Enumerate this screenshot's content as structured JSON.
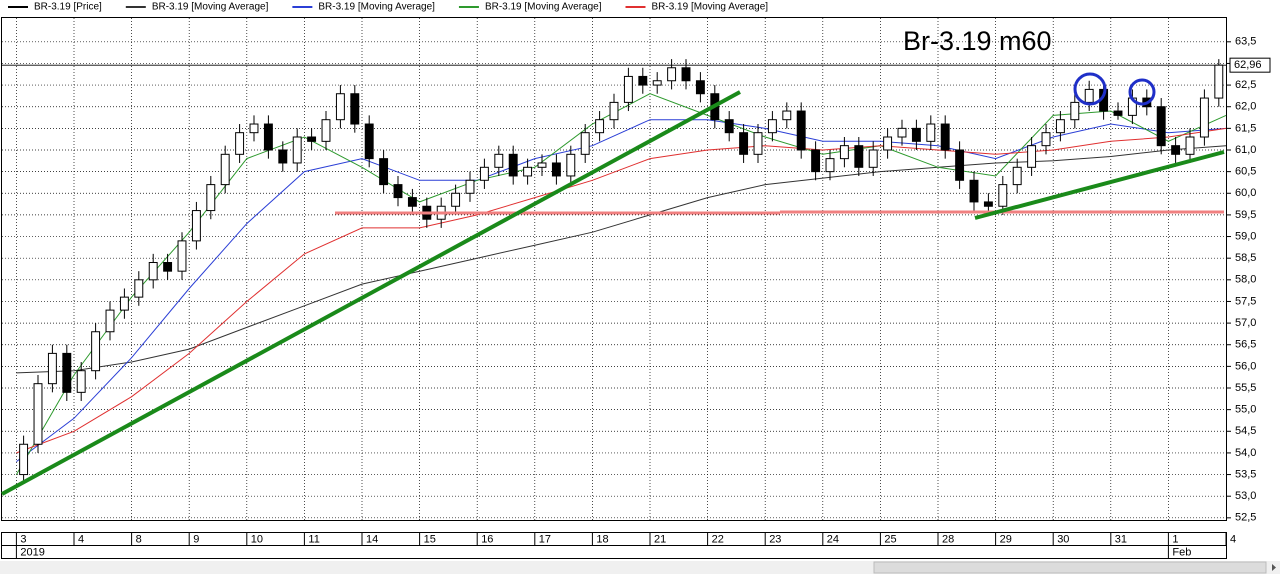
{
  "chart_data": {
    "type": "candlestick",
    "title": "Br-3.19 m60",
    "xlim": [
      -1,
      84
    ],
    "ylim": [
      52.45,
      64.05
    ],
    "xticks": [
      {
        "value": 0,
        "label": "3"
      },
      {
        "value": 4,
        "label": "4"
      },
      {
        "value": 8,
        "label": "8"
      },
      {
        "value": 12,
        "label": "9"
      },
      {
        "value": 16,
        "label": "10"
      },
      {
        "value": 20,
        "label": "11"
      },
      {
        "value": 24,
        "label": "14"
      },
      {
        "value": 28,
        "label": "15"
      },
      {
        "value": 32,
        "label": "16"
      },
      {
        "value": 36,
        "label": "17"
      },
      {
        "value": 40,
        "label": "18"
      },
      {
        "value": 44,
        "label": "21"
      },
      {
        "value": 48,
        "label": "22"
      },
      {
        "value": 52,
        "label": "23"
      },
      {
        "value": 56,
        "label": "24"
      },
      {
        "value": 60,
        "label": "25"
      },
      {
        "value": 64,
        "label": "28"
      },
      {
        "value": 68,
        "label": "29"
      },
      {
        "value": 72,
        "label": "30"
      },
      {
        "value": 76,
        "label": "31"
      },
      {
        "value": 80,
        "label": "1"
      },
      {
        "value": 84,
        "label": "4"
      }
    ],
    "x_sublabels": [
      {
        "value": 0,
        "label": "2019"
      },
      {
        "value": 80,
        "label": "Feb"
      }
    ],
    "yticks": [
      {
        "value": 52.5,
        "label": "52,5"
      },
      {
        "value": 53,
        "label": "53,0"
      },
      {
        "value": 53.5,
        "label": "53,5"
      },
      {
        "value": 54,
        "label": "54,0"
      },
      {
        "value": 54.5,
        "label": "54,5"
      },
      {
        "value": 55,
        "label": "55,0"
      },
      {
        "value": 55.5,
        "label": "55,5"
      },
      {
        "value": 56,
        "label": "56,0"
      },
      {
        "value": 56.5,
        "label": "56,5"
      },
      {
        "value": 57,
        "label": "57,0"
      },
      {
        "value": 57.5,
        "label": "57,5"
      },
      {
        "value": 58,
        "label": "58,0"
      },
      {
        "value": 58.5,
        "label": "58,5"
      },
      {
        "value": 59,
        "label": "59,0"
      },
      {
        "value": 59.5,
        "label": "59,5"
      },
      {
        "value": 60,
        "label": "60,0"
      },
      {
        "value": 60.5,
        "label": "60,5"
      },
      {
        "value": 61,
        "label": "61,0"
      },
      {
        "value": 61.5,
        "label": "61,5"
      },
      {
        "value": 62,
        "label": "62,0"
      },
      {
        "value": 62.5,
        "label": "62,5"
      },
      {
        "value": 63,
        "label": "63,0"
      },
      {
        "value": 63.5,
        "label": "63,5"
      }
    ],
    "grid": true,
    "last_price": {
      "value": 62.96,
      "label": "62,96"
    },
    "price": {
      "name": "BR-3.19 [Price]",
      "color": "#000000",
      "x": [
        0.5,
        1.5,
        2.5,
        3.5,
        4.5,
        5.5,
        6.5,
        7.5,
        8.5,
        9.5,
        10.5,
        11.5,
        12.5,
        13.5,
        14.5,
        15.5,
        16.5,
        17.5,
        18.5,
        19.5,
        20.5,
        21.5,
        22.5,
        23.5,
        24.5,
        25.5,
        26.5,
        27.5,
        28.5,
        29.5,
        30.5,
        31.5,
        32.5,
        33.5,
        34.5,
        35.5,
        36.5,
        37.5,
        38.5,
        39.5,
        40.5,
        41.5,
        42.5,
        43.5,
        44.5,
        45.5,
        46.5,
        47.5,
        48.5,
        49.5,
        50.5,
        51.5,
        52.5,
        53.5,
        54.5,
        55.5,
        56.5,
        57.5,
        58.5,
        59.5,
        60.5,
        61.5,
        62.5,
        63.5,
        64.5,
        65.5,
        66.5,
        67.5,
        68.5,
        69.5,
        70.5,
        71.5,
        72.5,
        73.5,
        74.5,
        75.5,
        76.5,
        77.5,
        78.5,
        79.5,
        80.5,
        81.5,
        82.5,
        83.5
      ],
      "open": [
        53.5,
        54.2,
        55.6,
        56.3,
        55.4,
        55.9,
        56.8,
        57.3,
        57.6,
        58.0,
        58.4,
        58.2,
        58.9,
        59.6,
        60.2,
        60.9,
        61.4,
        61.6,
        61.0,
        60.7,
        61.3,
        61.2,
        61.7,
        62.3,
        61.6,
        60.8,
        60.2,
        59.9,
        59.7,
        59.4,
        59.7,
        60.0,
        60.3,
        60.6,
        60.9,
        60.4,
        60.6,
        60.7,
        60.4,
        60.9,
        61.4,
        61.7,
        62.1,
        62.7,
        62.5,
        62.6,
        62.9,
        62.6,
        62.3,
        61.7,
        61.4,
        60.9,
        61.4,
        61.7,
        61.9,
        61.0,
        60.5,
        60.8,
        61.1,
        60.6,
        61.0,
        61.3,
        61.5,
        61.2,
        61.6,
        61.0,
        60.3,
        59.8,
        59.7,
        60.2,
        60.6,
        61.1,
        61.4,
        61.7,
        62.1,
        62.4,
        61.9,
        61.8,
        62.2,
        62.0,
        61.1,
        60.9,
        61.3,
        62.2
      ],
      "high": [
        54.4,
        55.8,
        56.5,
        56.5,
        56.1,
        57.0,
        57.5,
        57.8,
        58.2,
        58.6,
        58.6,
        59.1,
        59.8,
        60.4,
        61.1,
        61.6,
        61.8,
        61.8,
        61.2,
        61.5,
        61.5,
        61.9,
        62.5,
        62.5,
        61.8,
        61.0,
        60.4,
        60.1,
        59.9,
        59.9,
        60.2,
        60.5,
        60.8,
        61.1,
        61.1,
        60.8,
        60.9,
        60.9,
        61.1,
        61.6,
        61.9,
        62.3,
        62.9,
        62.9,
        62.8,
        63.1,
        63.1,
        62.8,
        62.5,
        61.9,
        61.6,
        61.6,
        61.9,
        62.1,
        62.1,
        61.2,
        61.0,
        61.3,
        61.3,
        61.2,
        61.5,
        61.7,
        61.7,
        61.8,
        61.8,
        61.2,
        60.5,
        60.0,
        60.4,
        60.8,
        61.3,
        61.6,
        61.9,
        62.3,
        62.6,
        62.6,
        62.1,
        62.4,
        62.4,
        62.2,
        61.3,
        61.5,
        62.4,
        63.1
      ],
      "low": [
        53.3,
        54.0,
        55.4,
        55.2,
        55.2,
        55.7,
        56.6,
        57.1,
        57.4,
        57.8,
        58.0,
        58.0,
        58.7,
        59.4,
        60.0,
        60.7,
        61.2,
        60.8,
        60.5,
        60.5,
        61.0,
        61.0,
        61.5,
        61.4,
        60.6,
        60.0,
        59.7,
        59.5,
        59.2,
        59.2,
        59.5,
        59.8,
        60.1,
        60.4,
        60.2,
        60.2,
        60.4,
        60.2,
        60.2,
        60.7,
        61.2,
        61.5,
        61.9,
        62.3,
        62.3,
        62.4,
        62.4,
        62.1,
        61.5,
        61.2,
        60.7,
        60.7,
        61.2,
        61.5,
        60.8,
        60.3,
        60.3,
        60.6,
        60.4,
        60.4,
        60.8,
        61.1,
        61.0,
        61.0,
        60.8,
        60.1,
        59.6,
        59.5,
        59.5,
        60.0,
        60.4,
        60.9,
        61.2,
        61.5,
        61.9,
        61.7,
        61.7,
        61.6,
        61.8,
        60.9,
        60.7,
        60.7,
        61.1,
        62.0
      ],
      "close": [
        54.2,
        55.6,
        56.3,
        55.4,
        55.9,
        56.8,
        57.3,
        57.6,
        58.0,
        58.4,
        58.2,
        58.9,
        59.6,
        60.2,
        60.9,
        61.4,
        61.6,
        61.0,
        60.7,
        61.3,
        61.2,
        61.7,
        62.3,
        61.6,
        60.8,
        60.2,
        59.9,
        59.7,
        59.4,
        59.7,
        60.0,
        60.3,
        60.6,
        60.9,
        60.4,
        60.6,
        60.7,
        60.4,
        60.9,
        61.4,
        61.7,
        62.1,
        62.7,
        62.5,
        62.6,
        62.9,
        62.6,
        62.3,
        61.7,
        61.4,
        60.9,
        61.4,
        61.7,
        61.9,
        61.0,
        60.5,
        60.8,
        61.1,
        60.6,
        61.0,
        61.3,
        61.5,
        61.2,
        61.6,
        61.0,
        60.3,
        59.8,
        59.7,
        60.2,
        60.6,
        61.1,
        61.4,
        61.7,
        62.1,
        62.4,
        61.9,
        61.8,
        62.2,
        62.0,
        61.1,
        60.9,
        61.3,
        62.2,
        62.96
      ]
    },
    "series": [
      {
        "name": "BR-3.19 [Moving Average]",
        "color": "#333333",
        "x": [
          0,
          4,
          8,
          12,
          16,
          20,
          24,
          28,
          32,
          36,
          40,
          44,
          48,
          52,
          56,
          60,
          64,
          68,
          72,
          76,
          80,
          84
        ],
        "values": [
          55.85,
          55.9,
          56.1,
          56.4,
          56.9,
          57.4,
          57.9,
          58.2,
          58.5,
          58.8,
          59.1,
          59.5,
          59.9,
          60.2,
          60.35,
          60.5,
          60.6,
          60.7,
          60.75,
          60.85,
          61.0,
          61.1
        ]
      },
      {
        "name": "BR-3.19 [Moving Average]",
        "color": "#2b3fd6",
        "x": [
          0,
          4,
          8,
          12,
          16,
          20,
          24,
          28,
          32,
          36,
          40,
          44,
          48,
          52,
          56,
          60,
          64,
          68,
          72,
          76,
          80,
          84
        ],
        "values": [
          53.8,
          54.8,
          56.2,
          57.8,
          59.3,
          60.5,
          60.8,
          60.3,
          60.3,
          60.8,
          61.1,
          61.7,
          61.7,
          61.5,
          61.2,
          61.2,
          61.1,
          60.8,
          61.3,
          61.6,
          61.4,
          61.5
        ]
      },
      {
        "name": "BR-3.19 [Moving Average]",
        "color": "#2e9a2e",
        "x": [
          0,
          4,
          8,
          12,
          16,
          20,
          24,
          28,
          32,
          36,
          40,
          44,
          48,
          52,
          56,
          60,
          64,
          68,
          72,
          76,
          80,
          84
        ],
        "values": [
          53.5,
          55.8,
          57.6,
          59.1,
          60.8,
          61.3,
          60.6,
          59.8,
          60.3,
          60.6,
          61.6,
          62.3,
          61.8,
          61.3,
          60.9,
          61.1,
          60.6,
          60.4,
          61.8,
          61.9,
          61.2,
          61.8
        ]
      },
      {
        "name": "BR-3.19 [Moving Average]",
        "color": "#e03030",
        "x": [
          0,
          4,
          8,
          12,
          16,
          20,
          24,
          28,
          32,
          36,
          40,
          44,
          48,
          52,
          56,
          60,
          64,
          68,
          72,
          76,
          80,
          84
        ],
        "values": [
          54.0,
          54.5,
          55.3,
          56.3,
          57.5,
          58.6,
          59.2,
          59.2,
          59.5,
          59.9,
          60.3,
          60.8,
          61.0,
          61.1,
          61.0,
          61.1,
          61.0,
          60.9,
          61.0,
          61.2,
          61.3,
          61.5
        ]
      }
    ]
  }
}
